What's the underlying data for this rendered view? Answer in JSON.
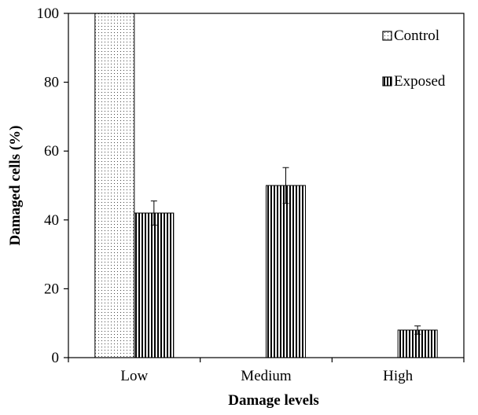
{
  "chart_data": {
    "type": "bar",
    "categories": [
      "Low",
      "Medium",
      "High"
    ],
    "series": [
      {
        "name": "Control",
        "values": [
          100,
          0,
          0
        ],
        "errors": [
          0,
          0,
          0
        ],
        "pattern": "dotted"
      },
      {
        "name": "Exposed",
        "values": [
          42,
          50,
          8
        ],
        "errors": [
          3.5,
          5.2,
          1.2
        ],
        "pattern": "vertical-stripes"
      }
    ],
    "xlabel": "Damage levels",
    "ylabel": "Damaged cells (%)",
    "ylim": [
      0,
      100
    ],
    "yticks": [
      "0",
      "20",
      "40",
      "60",
      "80",
      "100"
    ],
    "grid": false,
    "legend_position": "top-right"
  }
}
